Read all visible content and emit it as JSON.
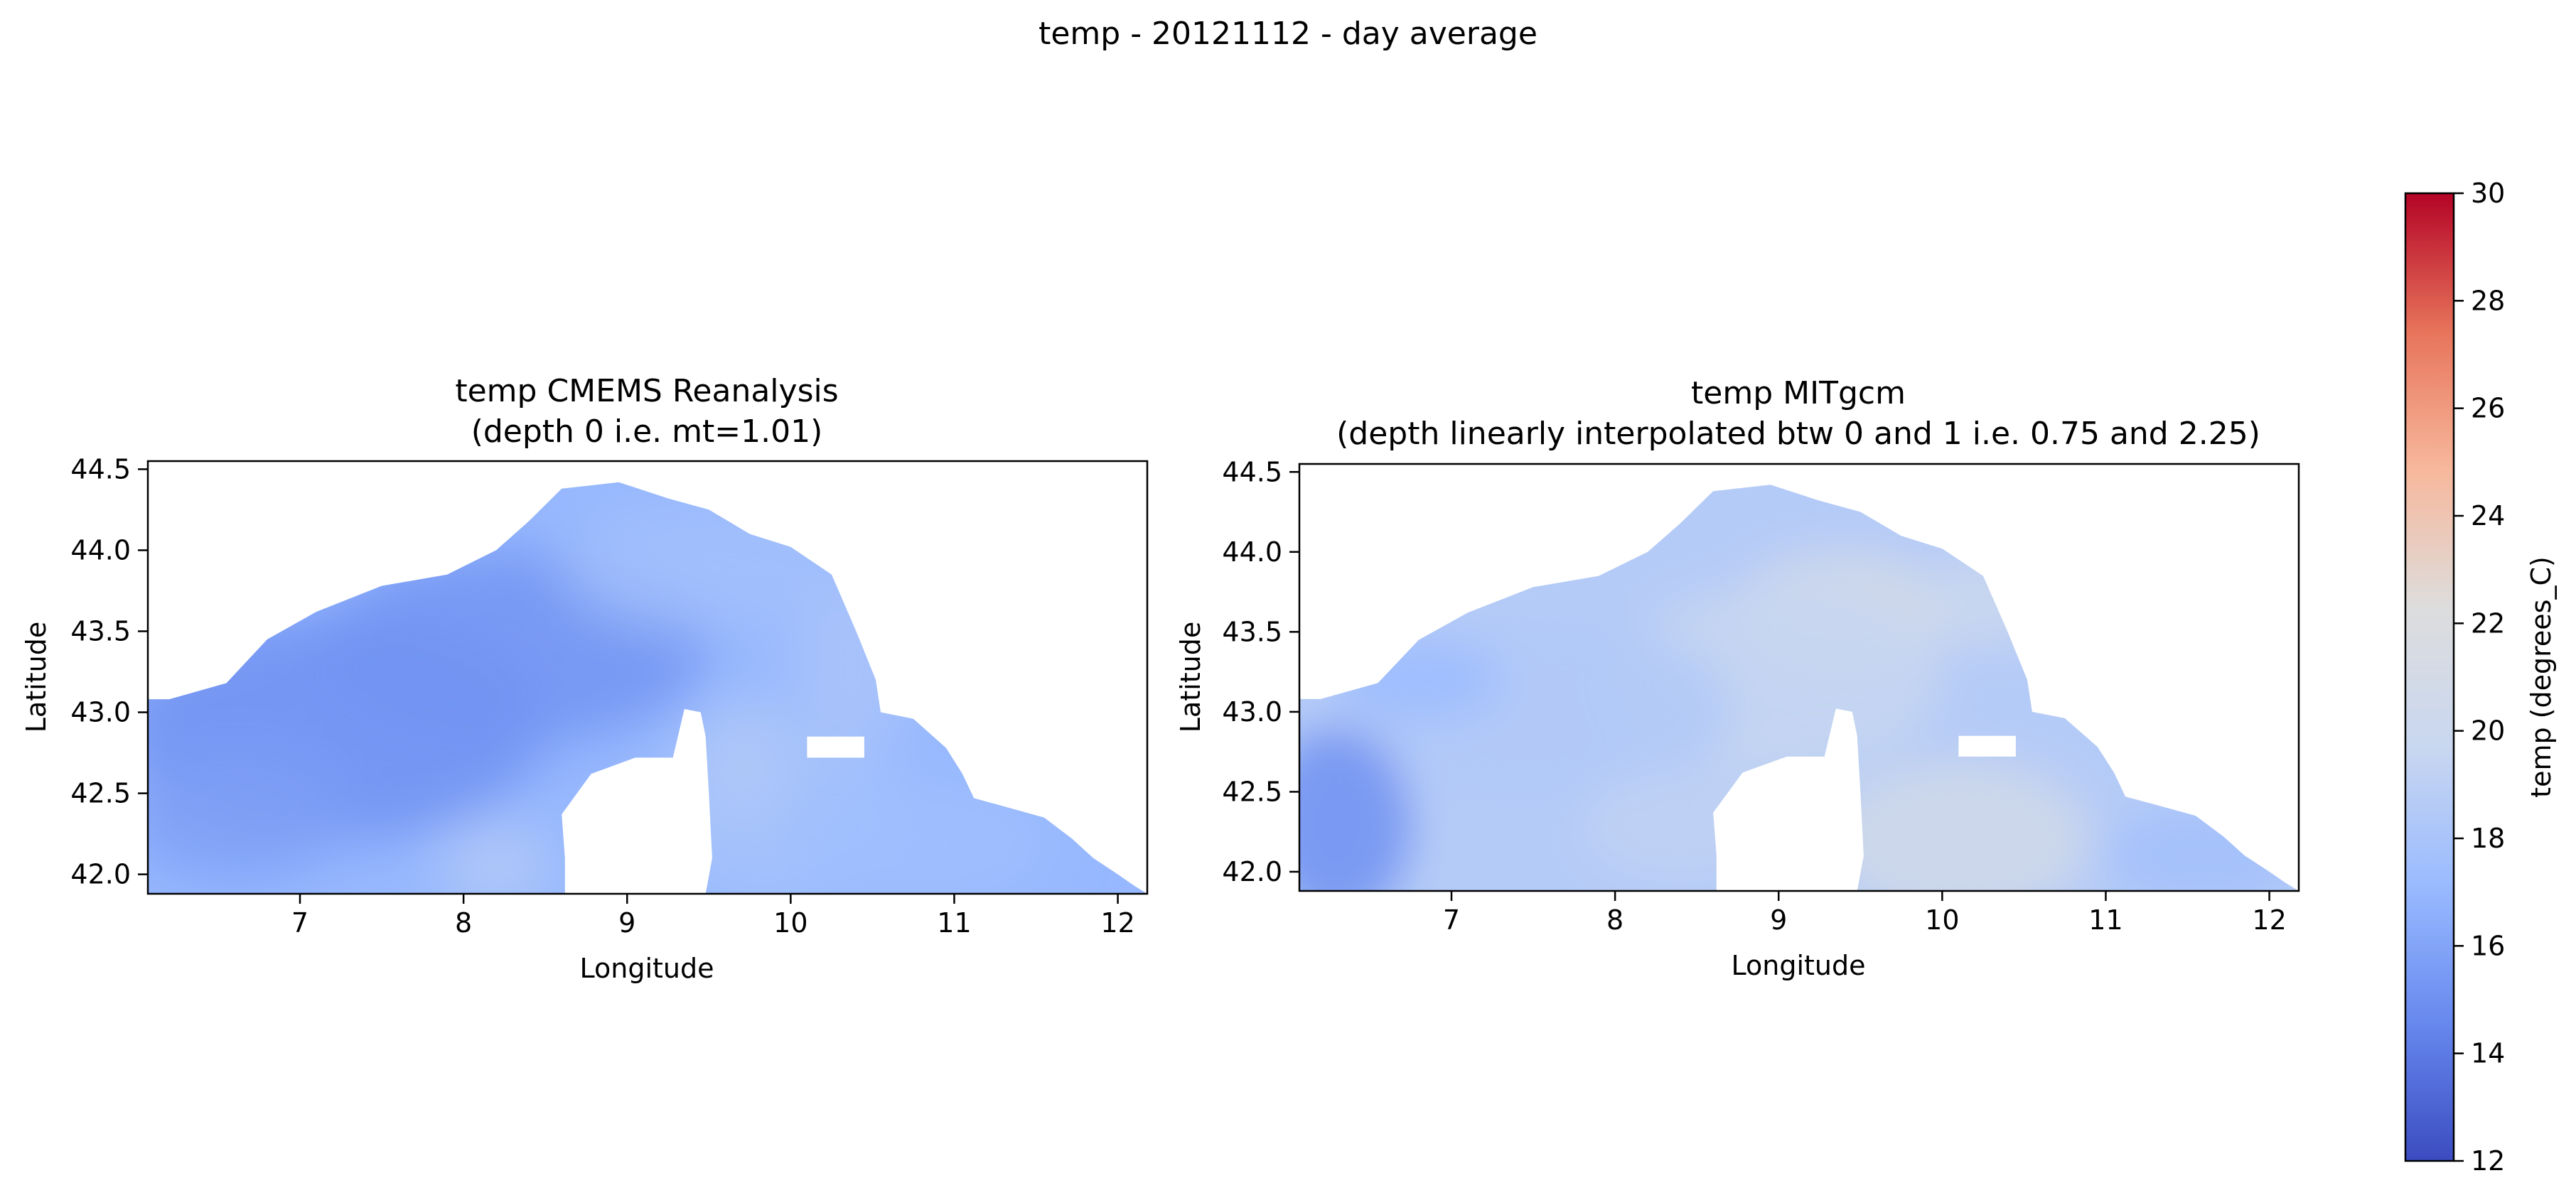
{
  "figure": {
    "suptitle": "temp - 20121112 - day average"
  },
  "chart_data": [
    {
      "type": "heatmap",
      "title_line1": "temp CMEMS Reanalysis",
      "title_line2": "(depth 0 i.e. mt=1.01)",
      "xlabel": "Longitude",
      "ylabel": "Latitude",
      "xlim": [
        6.07,
        12.18
      ],
      "ylim": [
        41.88,
        44.55
      ],
      "xticks": [
        7,
        8,
        9,
        10,
        11,
        12
      ],
      "yticks": [
        42.0,
        42.5,
        43.0,
        43.5,
        44.0,
        44.5
      ],
      "ytick_labels": [
        "42.0",
        "42.5",
        "43.0",
        "43.5",
        "44.0",
        "44.5"
      ],
      "value_range_degC": [
        15.0,
        20.0
      ]
    },
    {
      "type": "heatmap",
      "title_line1": "temp MITgcm",
      "title_line2": "(depth linearly interpolated btw 0 and 1 i.e. 0.75 and 2.25)",
      "xlabel": "Longitude",
      "ylabel": "Latitude",
      "xlim": [
        6.07,
        12.18
      ],
      "ylim": [
        41.88,
        44.55
      ],
      "xticks": [
        7,
        8,
        9,
        10,
        11,
        12
      ],
      "yticks": [
        42.0,
        42.5,
        43.0,
        43.5,
        44.0,
        44.5
      ],
      "ytick_labels": [
        "42.0",
        "42.5",
        "43.0",
        "43.5",
        "44.0",
        "44.5"
      ],
      "value_range_degC": [
        13.0,
        21.5
      ]
    }
  ],
  "colorbar": {
    "label": "temp (degrees_C)",
    "colormap": "coolwarm",
    "min": 12,
    "max": 30,
    "ticks": [
      12,
      14,
      16,
      18,
      20,
      22,
      24,
      26,
      28,
      30
    ],
    "colors": [
      "#3b4cc0",
      "#6788ee",
      "#9abbff",
      "#c9d7f0",
      "#dddddd",
      "#f7b89c",
      "#e7745b",
      "#b40426"
    ]
  }
}
